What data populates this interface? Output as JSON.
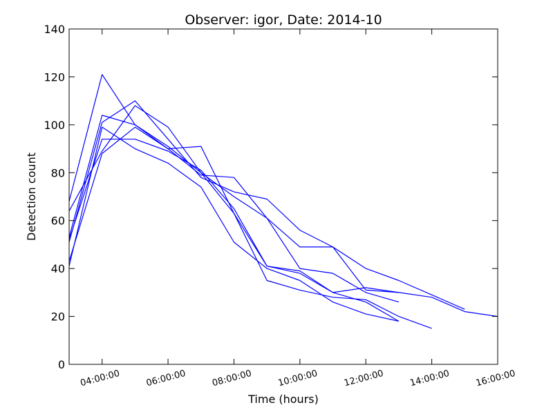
{
  "chart_data": {
    "type": "line",
    "title": "Observer: igor, Date: 2014-10",
    "xlabel": "Time (hours)",
    "ylabel": "Detection count",
    "xlim": [
      3,
      16
    ],
    "ylim": [
      0,
      140
    ],
    "xticks": [
      4,
      6,
      8,
      10,
      12,
      14,
      16
    ],
    "xtick_labels": [
      "04:00:00",
      "06:00:00",
      "08:00:00",
      "10:00:00",
      "12:00:00",
      "14:00:00",
      "16:00:00"
    ],
    "yticks": [
      0,
      20,
      40,
      60,
      80,
      100,
      120,
      140
    ],
    "ytick_labels": [
      "0",
      "20",
      "40",
      "60",
      "80",
      "100",
      "120",
      "140"
    ],
    "grid": false,
    "line_color": "#0000ff",
    "series": [
      {
        "x": [
          3,
          4,
          5,
          6,
          7,
          8,
          9,
          10,
          11,
          12,
          13
        ],
        "y": [
          68,
          121,
          100,
          91,
          80,
          63,
          41,
          39,
          30,
          26,
          18
        ]
      },
      {
        "x": [
          3,
          4,
          5,
          6,
          7,
          8,
          9,
          10,
          11,
          12,
          13
        ],
        "y": [
          53,
          104,
          100,
          90,
          79,
          78,
          61,
          40,
          38,
          30,
          26
        ]
      },
      {
        "x": [
          3,
          4,
          5,
          6,
          7,
          8,
          9,
          10,
          11,
          12,
          13
        ],
        "y": [
          51,
          101,
          110,
          94,
          78,
          72,
          69,
          56,
          49,
          31,
          30
        ]
      },
      {
        "x": [
          3,
          4,
          5,
          6,
          7,
          8,
          9,
          10,
          11,
          12,
          13,
          14,
          15
        ],
        "y": [
          64,
          89,
          108,
          99,
          80,
          70,
          61,
          49,
          49,
          40,
          35,
          29,
          23
        ]
      },
      {
        "x": [
          3,
          4,
          5,
          6,
          7,
          8,
          9,
          10,
          11,
          12,
          13,
          14,
          15,
          16
        ],
        "y": [
          52,
          94,
          94,
          89,
          81,
          65,
          41,
          38,
          30,
          32,
          30,
          28,
          22,
          20
        ]
      },
      {
        "x": [
          3,
          4,
          5,
          6,
          7,
          8,
          9,
          10,
          11,
          12,
          13,
          14
        ],
        "y": [
          43,
          88,
          99,
          90,
          91,
          63,
          35,
          31,
          28,
          27,
          20,
          15
        ]
      },
      {
        "x": [
          3,
          4,
          5,
          6,
          7,
          8,
          9,
          10,
          11,
          12,
          13
        ],
        "y": [
          41,
          99,
          90,
          84,
          74,
          51,
          40,
          35,
          26,
          21,
          18
        ]
      }
    ]
  }
}
